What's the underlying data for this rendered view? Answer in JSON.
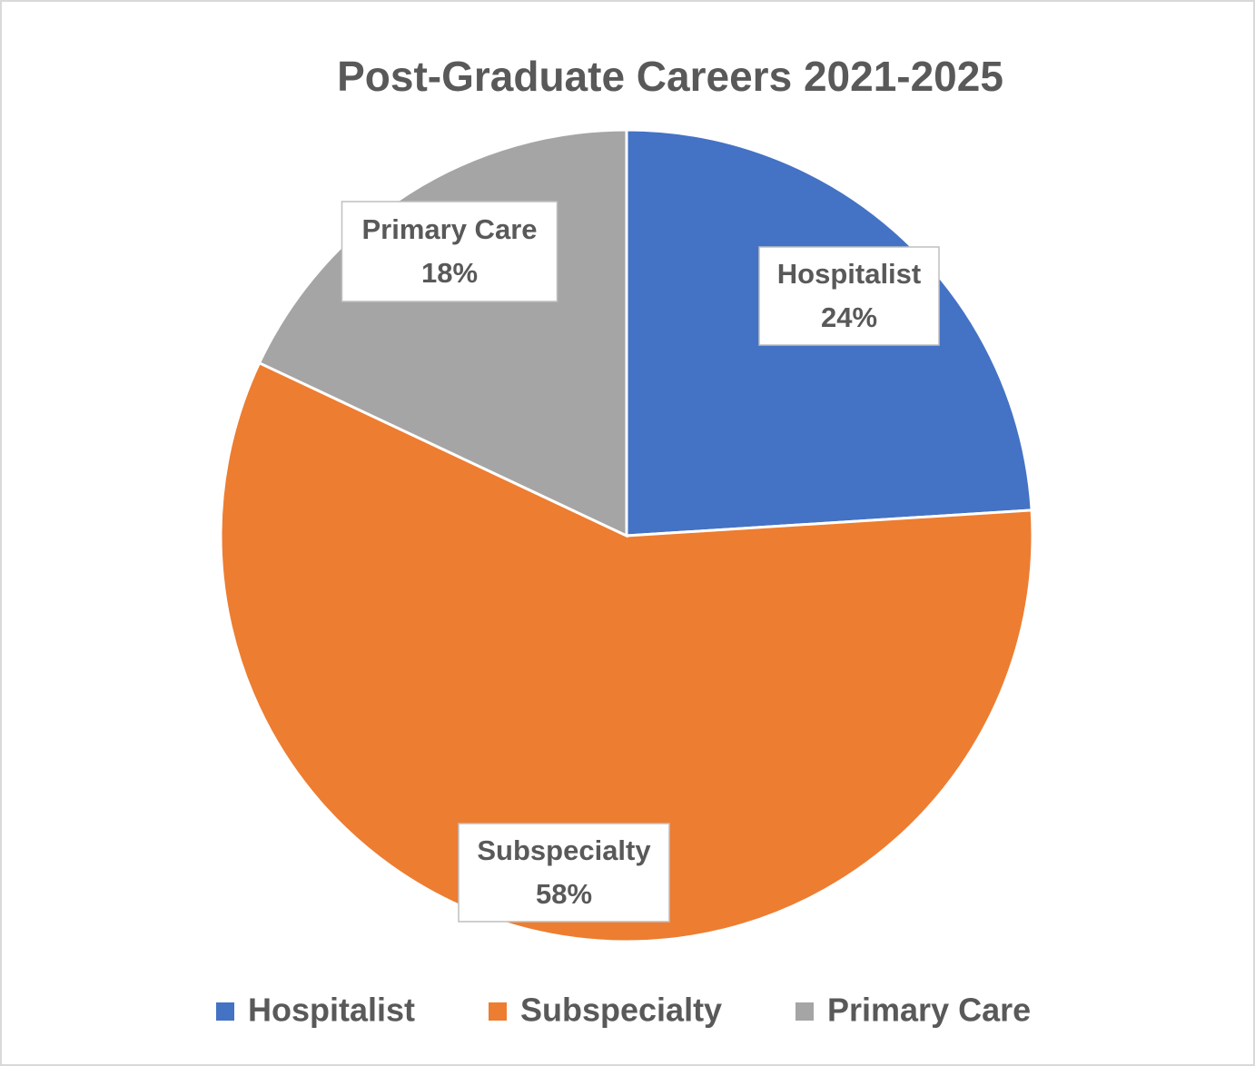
{
  "chart_data": {
    "type": "pie",
    "title": "Post-Graduate Careers 2021-2025",
    "categories": [
      "Hospitalist",
      "Subspecialty",
      "Primary Care"
    ],
    "values": [
      24,
      58,
      18
    ],
    "value_labels": [
      "24%",
      "58%",
      "18%"
    ],
    "colors": [
      "#4472c4",
      "#ed7d31",
      "#a5a5a5"
    ],
    "legend": "bottom"
  }
}
